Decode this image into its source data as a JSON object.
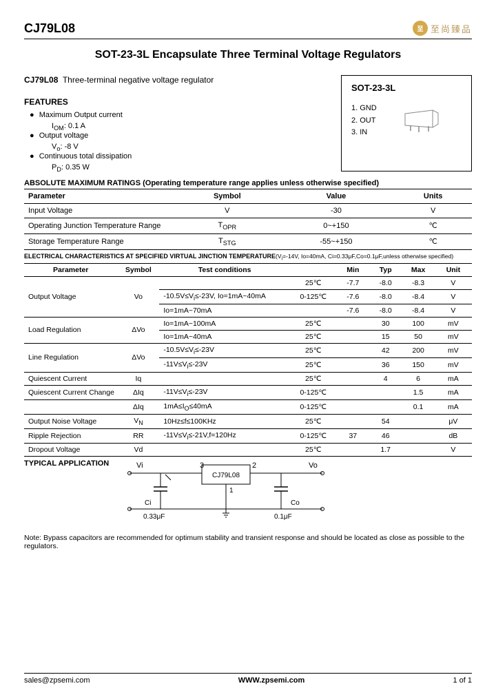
{
  "header": {
    "partNo": "CJ79L08",
    "logoText": "至尚臻品"
  },
  "title": "SOT-23-3L Encapsulate Three Terminal Voltage Regulators",
  "intro": {
    "part": "CJ79L08",
    "desc": "Three-terminal negative voltage regulator"
  },
  "features": {
    "heading": "FEATURES",
    "items": [
      {
        "label": "Maximum Output current",
        "sub": "I<sub>OM</sub>: 0.1 A"
      },
      {
        "label": "Output voltage",
        "sub": "V<sub>o</sub>: -8 V"
      },
      {
        "label": "Continuous total dissipation",
        "sub": "P<sub>D</sub>: 0.35 W"
      }
    ]
  },
  "package": {
    "name": "SOT-23-3L",
    "pins": [
      "1. GND",
      "2. OUT",
      "3. IN"
    ]
  },
  "absMax": {
    "heading": "ABSOLUTE MAXIMUM RATINGS (Operating temperature range applies unless otherwise specified)",
    "cols": [
      "Parameter",
      "Symbol",
      "Value",
      "Units"
    ],
    "rows": [
      [
        "Input Voltage",
        "V",
        "-30",
        "V"
      ],
      [
        "Operating Junction Temperature Range",
        "T<sub>OPR</sub>",
        "0~+150",
        "℃"
      ],
      [
        "Storage Temperature Range",
        "T<sub>STG</sub>",
        "-55~+150",
        "℃"
      ]
    ]
  },
  "elec": {
    "heading": "ELECTRICAL CHARACTERISTICS AT SPECIFIED VIRTUAL JINCTION TEMPERATURE",
    "note": "(V<sub>i</sub>=-14V, Io=40mA, Ci=0.33μF,Co=0.1μF,unless otherwise specified)",
    "cols": [
      "Parameter",
      "Symbol",
      "Test conditions",
      "",
      "Min",
      "Typ",
      "Max",
      "Unit"
    ],
    "rows": [
      {
        "p": "Output Voltage",
        "s": "Vo",
        "sub": [
          [
            "",
            "25℃",
            "-7.7",
            "-8.0",
            "-8.3",
            "V"
          ],
          [
            "-10.5V≤V<sub>i</sub>≤-23V, Io=1mA~40mA",
            "0-125℃",
            "-7.6",
            "-8.0",
            "-8.4",
            "V"
          ],
          [
            "Io=1mA~70mA",
            "",
            "-7.6",
            "-8.0",
            "-8.4",
            "V"
          ]
        ]
      },
      {
        "p": "Load Regulation",
        "s": "ΔVo",
        "sub": [
          [
            "Io=1mA~100mA",
            "25℃",
            "",
            "30",
            "100",
            "mV"
          ],
          [
            "Io=1mA~40mA",
            "25℃",
            "",
            "15",
            "50",
            "mV"
          ]
        ]
      },
      {
        "p": "Line Regulation",
        "s": "ΔVo",
        "sub": [
          [
            "-10.5V≤V<sub>i</sub>≤-23V",
            "25℃",
            "",
            "42",
            "200",
            "mV"
          ],
          [
            "-11V≤V<sub>i</sub>≤-23V",
            "25℃",
            "",
            "36",
            "150",
            "mV"
          ]
        ]
      },
      {
        "p": "Quiescent Current",
        "s": "Iq",
        "sub": [
          [
            "",
            "25℃",
            "",
            "4",
            "6",
            "mA"
          ]
        ]
      },
      {
        "p": "Quiescent Current Change",
        "s": "ΔIq",
        "sub": [
          [
            "-11V≤V<sub>i</sub>≤-23V",
            "0-125℃",
            "",
            "",
            "1.5",
            "mA"
          ]
        ]
      },
      {
        "p": "",
        "s": "ΔIq",
        "sub": [
          [
            "1mA≤I<sub>O</sub>≤40mA",
            "0-125℃",
            "",
            "",
            "0.1",
            "mA"
          ]
        ]
      },
      {
        "p": "Output Noise Voltage",
        "s": "V<sub>N</sub>",
        "sub": [
          [
            "10Hz≤f≤100KHz",
            "25℃",
            "",
            "54",
            "",
            "μV"
          ]
        ]
      },
      {
        "p": "Ripple Rejection",
        "s": "RR",
        "sub": [
          [
            "-11V≤V<sub>i</sub>≤-21V,f=120Hz",
            "0-125℃",
            "37",
            "46",
            "",
            "dB"
          ]
        ]
      },
      {
        "p": "Dropout Voltage",
        "s": "Vd",
        "sub": [
          [
            "",
            "25℃",
            "",
            "1.7",
            "",
            "V"
          ]
        ]
      }
    ]
  },
  "typApp": {
    "heading": "TYPICAL APPLICATION",
    "vi": "Vi",
    "vo": "Vo",
    "chip": "CJ79L08",
    "ci": "Ci",
    "ciVal": "0.33μF",
    "co": "Co",
    "coVal": "0.1μF"
  },
  "note": "Note:   Bypass capacitors are recommended for optimum stability and transient response and should be located as close as possible to the regulators.",
  "footer": {
    "email": "sales@zpsemi.com",
    "site": "WWW.zpsemi.com",
    "page": "1 of 1"
  },
  "colors": {
    "border": "#000000",
    "logo": "#d4a84b",
    "logoText": "#b89a5c"
  }
}
